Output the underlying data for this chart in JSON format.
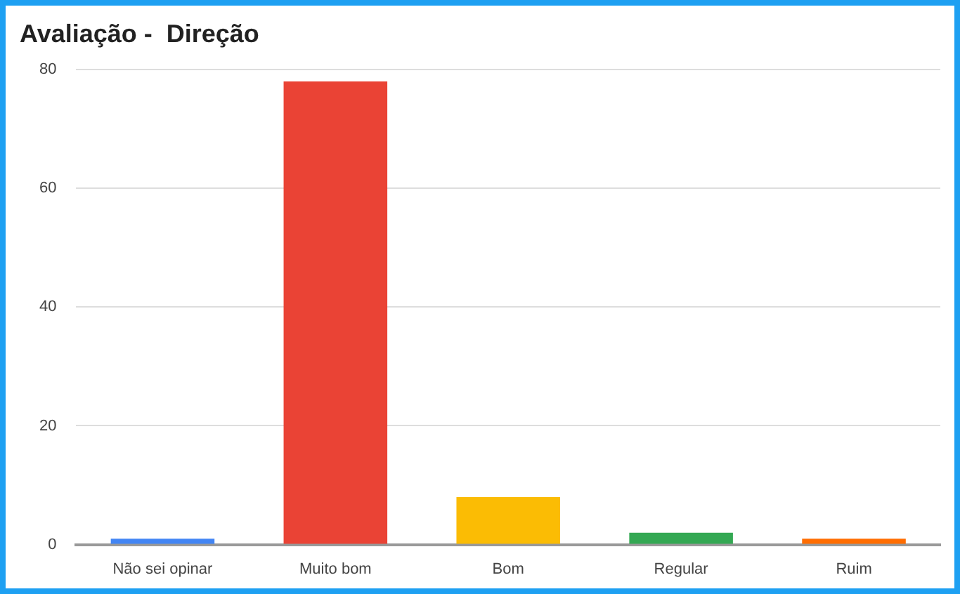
{
  "chart_data": {
    "type": "bar",
    "title": "Avaliação -  Direção",
    "categories": [
      "Não sei opinar",
      "Muito bom",
      "Bom",
      "Regular",
      "Ruim"
    ],
    "values": [
      1,
      78,
      8,
      2,
      1
    ],
    "colors": [
      "#4285f4",
      "#ea4335",
      "#fbbc04",
      "#34a853",
      "#ff6d01"
    ],
    "ylim": [
      0,
      80
    ],
    "yticks": [
      0,
      20,
      40,
      60,
      80
    ],
    "grid": "y",
    "legend": false
  }
}
